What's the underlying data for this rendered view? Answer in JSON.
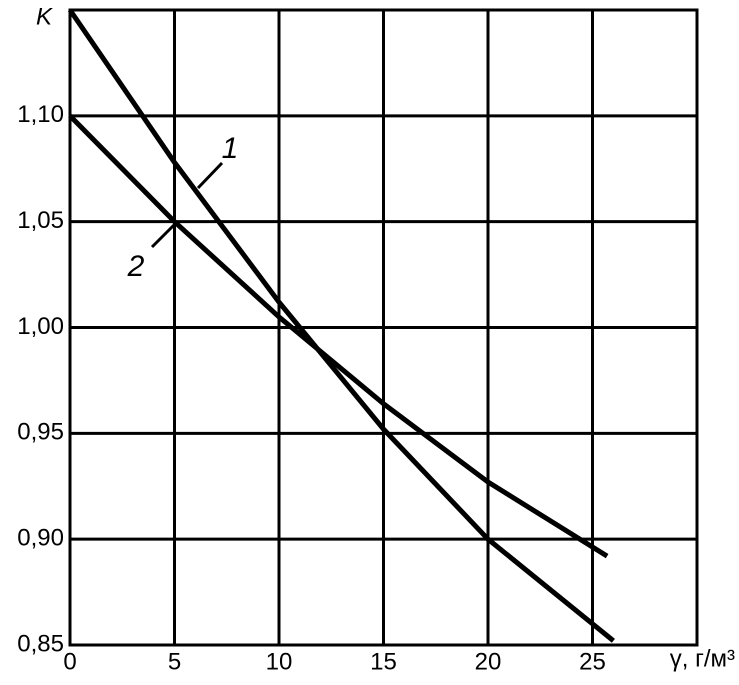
{
  "chart_data": {
    "type": "line",
    "y_label": "K",
    "x_label": "γ, г/м³",
    "xlim": [
      0,
      30
    ],
    "xticks": [
      0,
      5,
      10,
      15,
      20,
      25
    ],
    "ylim": [
      0.85,
      1.15
    ],
    "yticks": [
      {
        "value": 0.85,
        "label": "0,85"
      },
      {
        "value": 0.9,
        "label": "0,90"
      },
      {
        "value": 0.95,
        "label": "0,95"
      },
      {
        "value": 1.0,
        "label": "1,00"
      },
      {
        "value": 1.05,
        "label": "1,05"
      },
      {
        "value": 1.1,
        "label": "1,10"
      }
    ],
    "grid": true,
    "series": [
      {
        "name": "1",
        "color": "#000000",
        "x": [
          0,
          5,
          10,
          15,
          20,
          26
        ],
        "values": [
          1.15,
          1.078,
          1.012,
          0.952,
          0.9,
          0.852
        ]
      },
      {
        "name": "2",
        "color": "#000000",
        "x": [
          0,
          5,
          10,
          15,
          20,
          25.7
        ],
        "values": [
          1.1,
          1.05,
          1.005,
          0.964,
          0.927,
          0.892
        ]
      }
    ]
  }
}
